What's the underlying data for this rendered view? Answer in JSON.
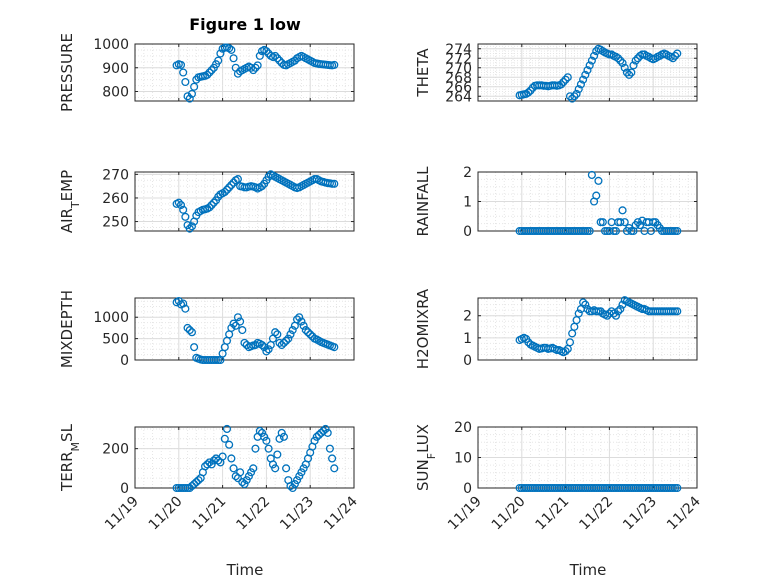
{
  "figure_title": "Figure 1 low",
  "xlabel": "Time",
  "chart_data": [
    {
      "type": "scatter",
      "ylabel": "PRESSURE",
      "ylim": [
        760,
        1000
      ],
      "yticks": [
        "800",
        "900",
        "1000"
      ],
      "ytick_values": [
        800,
        900,
        1000
      ],
      "xlim": [
        0,
        5
      ],
      "xticks": [
        "11/19",
        "11/20",
        "11/21",
        "11/22",
        "11/23",
        "11/24"
      ],
      "show_xticks": false,
      "marker_color": "#0072BD",
      "x": [
        0.95,
        1.0,
        1.05,
        1.1,
        1.15,
        1.2,
        1.25,
        1.3,
        1.35,
        1.4,
        1.45,
        1.5,
        1.55,
        1.6,
        1.65,
        1.7,
        1.75,
        1.8,
        1.85,
        1.9,
        1.95,
        2.0,
        2.05,
        2.1,
        2.15,
        2.2,
        2.25,
        2.3,
        2.35,
        2.4,
        2.45,
        2.5,
        2.55,
        2.6,
        2.65,
        2.7,
        2.75,
        2.8,
        2.85,
        2.9,
        2.95,
        3.0,
        3.05,
        3.1,
        3.15,
        3.2,
        3.25,
        3.3,
        3.35,
        3.4,
        3.45,
        3.5,
        3.55,
        3.6,
        3.65,
        3.7,
        3.75,
        3.8,
        3.85,
        3.9,
        3.95,
        4.0,
        4.05,
        4.1,
        4.15,
        4.2,
        4.25,
        4.3,
        4.35,
        4.4,
        4.45,
        4.5,
        4.55
      ],
      "y": [
        910,
        915,
        912,
        880,
        840,
        780,
        770,
        790,
        820,
        850,
        860,
        862,
        864,
        866,
        870,
        880,
        890,
        900,
        915,
        930,
        960,
        980,
        985,
        985,
        982,
        975,
        940,
        900,
        875,
        885,
        890,
        895,
        900,
        905,
        900,
        890,
        900,
        910,
        950,
        970,
        975,
        970,
        960,
        950,
        945,
        950,
        940,
        930,
        920,
        912,
        910,
        915,
        920,
        925,
        930,
        940,
        945,
        950,
        945,
        940,
        935,
        930,
        925,
        920,
        918,
        916,
        915,
        914,
        913,
        912,
        911,
        910,
        912
      ]
    },
    {
      "type": "scatter",
      "ylabel": "THETA",
      "ylim": [
        263,
        275
      ],
      "yticks": [
        "264",
        "266",
        "268",
        "270",
        "272",
        "274"
      ],
      "ytick_values": [
        264,
        266,
        268,
        270,
        272,
        274
      ],
      "xlim": [
        0,
        5
      ],
      "xticks": [
        "11/19",
        "11/20",
        "11/21",
        "11/22",
        "11/23",
        "11/24"
      ],
      "show_xticks": false,
      "marker_color": "#0072BD",
      "x": [
        0.95,
        1.0,
        1.05,
        1.1,
        1.15,
        1.2,
        1.25,
        1.3,
        1.35,
        1.4,
        1.45,
        1.5,
        1.55,
        1.6,
        1.65,
        1.7,
        1.75,
        1.8,
        1.85,
        1.9,
        1.95,
        2.0,
        2.05,
        2.1,
        2.15,
        2.2,
        2.25,
        2.3,
        2.35,
        2.4,
        2.45,
        2.5,
        2.55,
        2.6,
        2.65,
        2.7,
        2.75,
        2.8,
        2.85,
        2.9,
        2.95,
        3.0,
        3.05,
        3.1,
        3.15,
        3.2,
        3.25,
        3.3,
        3.35,
        3.4,
        3.45,
        3.5,
        3.55,
        3.6,
        3.65,
        3.7,
        3.75,
        3.8,
        3.85,
        3.9,
        3.95,
        4.0,
        4.05,
        4.1,
        4.15,
        4.2,
        4.25,
        4.3,
        4.35,
        4.4,
        4.45,
        4.5,
        4.55
      ],
      "y": [
        264.2,
        264.3,
        264.4,
        264.5,
        264.8,
        265.2,
        265.8,
        266.2,
        266.3,
        266.3,
        266.3,
        266.2,
        266.2,
        266.1,
        266.2,
        266.3,
        266.3,
        266.2,
        266.3,
        266.5,
        267.0,
        267.5,
        268.0,
        264.0,
        263.5,
        264.0,
        264.5,
        265.5,
        266.5,
        267.5,
        268.5,
        269.5,
        270.5,
        271.5,
        272.5,
        273.5,
        274.0,
        273.8,
        273.5,
        273.2,
        273.0,
        272.8,
        272.8,
        272.5,
        272.3,
        272.0,
        271.5,
        271.0,
        270.0,
        269.0,
        268.5,
        269.0,
        270.5,
        271.5,
        272.0,
        272.5,
        272.8,
        272.8,
        272.5,
        272.3,
        272.0,
        271.8,
        272.0,
        272.3,
        272.5,
        272.8,
        273.0,
        272.8,
        272.5,
        272.3,
        272.0,
        272.5,
        273.0
      ]
    },
    {
      "type": "scatter",
      "ylabel": "AIR_TEMP",
      "ylim": [
        246,
        271
      ],
      "yticks": [
        "250",
        "260",
        "270"
      ],
      "ytick_values": [
        250,
        260,
        270
      ],
      "xlim": [
        0,
        5
      ],
      "xticks": [
        "11/19",
        "11/20",
        "11/21",
        "11/22",
        "11/23",
        "11/24"
      ],
      "show_xticks": false,
      "marker_color": "#0072BD",
      "x": [
        0.95,
        1.0,
        1.05,
        1.1,
        1.15,
        1.2,
        1.25,
        1.3,
        1.35,
        1.4,
        1.45,
        1.5,
        1.55,
        1.6,
        1.65,
        1.7,
        1.75,
        1.8,
        1.85,
        1.9,
        1.95,
        2.0,
        2.05,
        2.1,
        2.15,
        2.2,
        2.25,
        2.3,
        2.35,
        2.4,
        2.45,
        2.5,
        2.55,
        2.6,
        2.65,
        2.7,
        2.75,
        2.8,
        2.85,
        2.9,
        2.95,
        3.0,
        3.05,
        3.1,
        3.15,
        3.2,
        3.25,
        3.3,
        3.35,
        3.4,
        3.45,
        3.5,
        3.55,
        3.6,
        3.65,
        3.7,
        3.75,
        3.8,
        3.85,
        3.9,
        3.95,
        4.0,
        4.05,
        4.1,
        4.15,
        4.2,
        4.25,
        4.3,
        4.35,
        4.4,
        4.45,
        4.5,
        4.55
      ],
      "y": [
        257.5,
        258.0,
        257.0,
        255.0,
        252.0,
        248.5,
        247.0,
        248.0,
        250.0,
        252.5,
        254.0,
        254.5,
        255.0,
        255.2,
        255.5,
        256.0,
        257.0,
        258.0,
        259.0,
        260.5,
        261.5,
        262.0,
        262.5,
        263.5,
        264.5,
        265.5,
        266.5,
        267.5,
        268.0,
        265.0,
        264.8,
        264.5,
        264.5,
        264.8,
        265.0,
        264.8,
        264.5,
        264.0,
        264.5,
        265.0,
        266.0,
        267.5,
        269.0,
        270.0,
        269.5,
        269.0,
        268.5,
        268.0,
        267.5,
        267.0,
        266.5,
        266.0,
        265.5,
        265.0,
        264.5,
        264.2,
        264.5,
        265.0,
        265.5,
        266.0,
        266.5,
        267.0,
        267.5,
        268.0,
        268.0,
        267.5,
        267.0,
        266.8,
        266.5,
        266.3,
        266.2,
        266.0,
        266.0
      ]
    },
    {
      "type": "scatter",
      "ylabel": "RAINFALL",
      "ylim": [
        0,
        2
      ],
      "yticks": [
        "0",
        "1",
        "2"
      ],
      "ytick_values": [
        0,
        1,
        2
      ],
      "xlim": [
        0,
        5
      ],
      "xticks": [
        "11/19",
        "11/20",
        "11/21",
        "11/22",
        "11/23",
        "11/24"
      ],
      "show_xticks": false,
      "marker_color": "#0072BD",
      "x": [
        0.95,
        1.0,
        1.05,
        1.1,
        1.15,
        1.2,
        1.25,
        1.3,
        1.35,
        1.4,
        1.45,
        1.5,
        1.55,
        1.6,
        1.65,
        1.7,
        1.75,
        1.8,
        1.85,
        1.9,
        1.95,
        2.0,
        2.05,
        2.1,
        2.15,
        2.2,
        2.25,
        2.3,
        2.35,
        2.4,
        2.45,
        2.5,
        2.55,
        2.6,
        2.65,
        2.7,
        2.75,
        2.8,
        2.85,
        2.9,
        2.95,
        3.0,
        3.05,
        3.1,
        3.15,
        3.2,
        3.25,
        3.3,
        3.35,
        3.4,
        3.45,
        3.5,
        3.55,
        3.6,
        3.65,
        3.7,
        3.75,
        3.8,
        3.85,
        3.9,
        3.95,
        4.0,
        4.05,
        4.1,
        4.15,
        4.2,
        4.25,
        4.3,
        4.35,
        4.4,
        4.45,
        4.5,
        4.55
      ],
      "y": [
        0,
        0,
        0,
        0,
        0,
        0,
        0,
        0,
        0,
        0,
        0,
        0,
        0,
        0,
        0,
        0,
        0,
        0,
        0,
        0,
        0,
        0,
        0,
        0,
        0,
        0,
        0,
        0,
        0,
        0,
        0,
        0,
        0,
        1.9,
        1.0,
        1.2,
        1.7,
        0.3,
        0.3,
        0,
        0,
        0,
        0.3,
        0,
        0,
        0.3,
        0.3,
        0.7,
        0.3,
        0,
        0.1,
        0,
        0,
        0.2,
        0.3,
        0.2,
        0.35,
        0,
        0.3,
        0.3,
        0,
        0.3,
        0.3,
        0.2,
        0.1,
        0,
        0,
        0,
        0,
        0,
        0,
        0,
        0
      ]
    },
    {
      "type": "scatter",
      "ylabel": "MIXDEPTH",
      "ylim": [
        0,
        1450
      ],
      "yticks": [
        "0",
        "500",
        "1000"
      ],
      "ytick_values": [
        0,
        500,
        1000
      ],
      "xlim": [
        0,
        5
      ],
      "xticks": [
        "11/19",
        "11/20",
        "11/21",
        "11/22",
        "11/23",
        "11/24"
      ],
      "show_xticks": false,
      "marker_color": "#0072BD",
      "x": [
        0.95,
        1.0,
        1.05,
        1.1,
        1.15,
        1.2,
        1.25,
        1.3,
        1.35,
        1.4,
        1.45,
        1.5,
        1.55,
        1.6,
        1.65,
        1.7,
        1.75,
        1.8,
        1.85,
        1.9,
        1.95,
        2.0,
        2.05,
        2.1,
        2.15,
        2.2,
        2.25,
        2.3,
        2.35,
        2.4,
        2.45,
        2.5,
        2.55,
        2.6,
        2.65,
        2.7,
        2.75,
        2.8,
        2.85,
        2.9,
        2.95,
        3.0,
        3.05,
        3.1,
        3.15,
        3.2,
        3.25,
        3.3,
        3.35,
        3.4,
        3.45,
        3.5,
        3.55,
        3.6,
        3.65,
        3.7,
        3.75,
        3.8,
        3.85,
        3.9,
        3.95,
        4.0,
        4.05,
        4.1,
        4.15,
        4.2,
        4.25,
        4.3,
        4.35,
        4.4,
        4.45,
        4.5,
        4.55
      ],
      "y": [
        1350,
        1380,
        1300,
        1320,
        1200,
        750,
        700,
        650,
        300,
        50,
        30,
        10,
        0,
        0,
        0,
        0,
        0,
        0,
        0,
        0,
        0,
        150,
        300,
        450,
        600,
        750,
        850,
        800,
        1000,
        900,
        700,
        400,
        350,
        300,
        320,
        340,
        350,
        400,
        380,
        350,
        300,
        200,
        250,
        350,
        500,
        650,
        600,
        400,
        350,
        400,
        450,
        500,
        600,
        700,
        800,
        950,
        1000,
        900,
        800,
        700,
        650,
        600,
        550,
        500,
        480,
        450,
        420,
        400,
        380,
        360,
        340,
        320,
        300
      ]
    },
    {
      "type": "scatter",
      "ylabel": "H2OMIXRA",
      "ylim": [
        0,
        2.8
      ],
      "yticks": [
        "0",
        "1",
        "2"
      ],
      "ytick_values": [
        0,
        1,
        2
      ],
      "xlim": [
        0,
        5
      ],
      "xticks": [
        "11/19",
        "11/20",
        "11/21",
        "11/22",
        "11/23",
        "11/24"
      ],
      "show_xticks": false,
      "marker_color": "#0072BD",
      "x": [
        0.95,
        1.0,
        1.05,
        1.1,
        1.15,
        1.2,
        1.25,
        1.3,
        1.35,
        1.4,
        1.45,
        1.5,
        1.55,
        1.6,
        1.65,
        1.7,
        1.75,
        1.8,
        1.85,
        1.9,
        1.95,
        2.0,
        2.05,
        2.1,
        2.15,
        2.2,
        2.25,
        2.3,
        2.35,
        2.4,
        2.45,
        2.5,
        2.55,
        2.6,
        2.65,
        2.7,
        2.75,
        2.8,
        2.85,
        2.9,
        2.95,
        3.0,
        3.05,
        3.1,
        3.15,
        3.2,
        3.25,
        3.3,
        3.35,
        3.4,
        3.45,
        3.5,
        3.55,
        3.6,
        3.65,
        3.7,
        3.75,
        3.8,
        3.85,
        3.9,
        3.95,
        4.0,
        4.05,
        4.1,
        4.15,
        4.2,
        4.25,
        4.3,
        4.35,
        4.4,
        4.45,
        4.5,
        4.55
      ],
      "y": [
        0.9,
        0.95,
        1.0,
        0.95,
        0.8,
        0.7,
        0.65,
        0.6,
        0.55,
        0.5,
        0.52,
        0.55,
        0.55,
        0.5,
        0.52,
        0.55,
        0.5,
        0.45,
        0.45,
        0.4,
        0.35,
        0.4,
        0.5,
        0.8,
        1.2,
        1.5,
        1.8,
        2.1,
        2.3,
        2.6,
        2.5,
        2.3,
        2.2,
        2.2,
        2.25,
        2.2,
        2.2,
        2.2,
        2.1,
        2.05,
        2.0,
        2.1,
        2.2,
        2.1,
        2.0,
        2.2,
        2.3,
        2.5,
        2.7,
        2.65,
        2.6,
        2.55,
        2.5,
        2.45,
        2.4,
        2.35,
        2.3,
        2.3,
        2.25,
        2.2,
        2.2,
        2.2,
        2.2,
        2.2,
        2.2,
        2.2,
        2.2,
        2.2,
        2.2,
        2.2,
        2.2,
        2.2,
        2.2
      ]
    },
    {
      "type": "scatter",
      "ylabel": "TERR_MSL",
      "ylim": [
        0,
        310
      ],
      "yticks": [
        "0",
        "200"
      ],
      "ytick_values": [
        0,
        200
      ],
      "xlim": [
        0,
        5
      ],
      "xticks": [
        "11/19",
        "11/20",
        "11/21",
        "11/22",
        "11/23",
        "11/24"
      ],
      "show_xticks": true,
      "marker_color": "#0072BD",
      "x": [
        0.95,
        1.0,
        1.05,
        1.1,
        1.15,
        1.2,
        1.25,
        1.3,
        1.35,
        1.4,
        1.45,
        1.5,
        1.55,
        1.6,
        1.65,
        1.7,
        1.75,
        1.8,
        1.85,
        1.9,
        1.95,
        2.0,
        2.05,
        2.1,
        2.15,
        2.2,
        2.25,
        2.3,
        2.35,
        2.4,
        2.45,
        2.5,
        2.55,
        2.6,
        2.65,
        2.7,
        2.75,
        2.8,
        2.85,
        2.9,
        2.95,
        3.0,
        3.05,
        3.1,
        3.15,
        3.2,
        3.25,
        3.3,
        3.35,
        3.4,
        3.45,
        3.5,
        3.55,
        3.6,
        3.65,
        3.7,
        3.75,
        3.8,
        3.85,
        3.9,
        3.95,
        4.0,
        4.05,
        4.1,
        4.15,
        4.2,
        4.25,
        4.3,
        4.35,
        4.4,
        4.45,
        4.5,
        4.55
      ],
      "y": [
        0,
        0,
        0,
        0,
        0,
        0,
        0,
        10,
        20,
        30,
        40,
        50,
        80,
        110,
        120,
        130,
        120,
        140,
        150,
        140,
        130,
        160,
        250,
        300,
        220,
        150,
        100,
        60,
        50,
        80,
        30,
        20,
        40,
        60,
        80,
        100,
        200,
        260,
        290,
        280,
        260,
        240,
        200,
        150,
        120,
        100,
        170,
        250,
        280,
        260,
        100,
        40,
        10,
        0,
        20,
        40,
        60,
        80,
        100,
        120,
        150,
        180,
        210,
        240,
        260,
        270,
        280,
        290,
        300,
        280,
        200,
        150,
        100
      ]
    },
    {
      "type": "scatter",
      "ylabel": "SUN_FLUX",
      "ylim": [
        0,
        20
      ],
      "yticks": [
        "0",
        "10",
        "20"
      ],
      "ytick_values": [
        0,
        10,
        20
      ],
      "xlim": [
        0,
        5
      ],
      "xticks": [
        "11/19",
        "11/20",
        "11/21",
        "11/22",
        "11/23",
        "11/24"
      ],
      "show_xticks": true,
      "marker_color": "#0072BD",
      "x": [
        0.95,
        1.0,
        1.05,
        1.1,
        1.15,
        1.2,
        1.25,
        1.3,
        1.35,
        1.4,
        1.45,
        1.5,
        1.55,
        1.6,
        1.65,
        1.7,
        1.75,
        1.8,
        1.85,
        1.9,
        1.95,
        2.0,
        2.05,
        2.1,
        2.15,
        2.2,
        2.25,
        2.3,
        2.35,
        2.4,
        2.45,
        2.5,
        2.55,
        2.6,
        2.65,
        2.7,
        2.75,
        2.8,
        2.85,
        2.9,
        2.95,
        3.0,
        3.05,
        3.1,
        3.15,
        3.2,
        3.25,
        3.3,
        3.35,
        3.4,
        3.45,
        3.5,
        3.55,
        3.6,
        3.65,
        3.7,
        3.75,
        3.8,
        3.85,
        3.9,
        3.95,
        4.0,
        4.05,
        4.1,
        4.15,
        4.2,
        4.25,
        4.3,
        4.35,
        4.4,
        4.45,
        4.5,
        4.55
      ],
      "y": [
        0,
        0,
        0,
        0,
        0,
        0,
        0,
        0,
        0,
        0,
        0,
        0,
        0,
        0,
        0,
        0,
        0,
        0,
        0,
        0,
        0,
        0,
        0,
        0,
        0,
        0,
        0,
        0,
        0,
        0,
        0,
        0,
        0,
        0,
        0,
        0,
        0,
        0,
        0,
        0,
        0,
        0,
        0,
        0,
        0,
        0,
        0,
        0,
        0,
        0,
        0,
        0,
        0,
        0,
        0,
        0,
        0,
        0,
        0,
        0,
        0,
        0,
        0,
        0,
        0,
        0,
        0,
        0,
        0,
        0,
        0,
        0,
        0
      ]
    }
  ]
}
